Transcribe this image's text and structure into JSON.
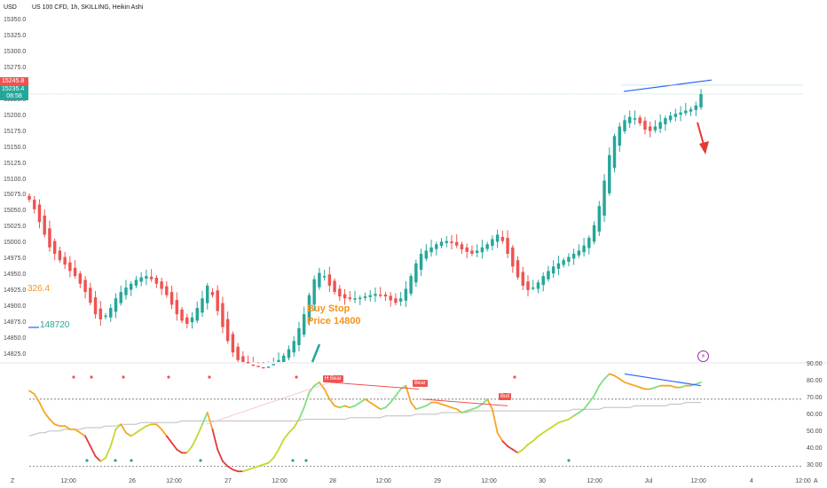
{
  "header": {
    "currency": "USD",
    "symbol_line": "US 100 CFD, 1h, SKILLING, Heikin Ashi"
  },
  "price_axis": {
    "labels": [
      "15350.0",
      "15325.0",
      "15300.0",
      "15275.0",
      "15250.0",
      "15225.0",
      "15200.0",
      "15175.0",
      "15150.0",
      "15125.0",
      "15100.0",
      "15075.0",
      "15050.0",
      "15025.0",
      "15000.0",
      "14975.0",
      "14950.0",
      "14925.0",
      "14900.0",
      "14875.0",
      "14850.0",
      "14825.0"
    ],
    "ask_tag": "15245.8",
    "bid_tag": "15235.4",
    "timer": "08:58"
  },
  "overlay": {
    "value_orange": "326.4",
    "value_green": "148720",
    "annotation_line1": "Buy Stop",
    "annotation_line2": "Price 14800"
  },
  "oscillator": {
    "axis_labels": [
      "90.00",
      "80.00",
      "70.00",
      "60.00",
      "50.00",
      "40.00",
      "30.00"
    ],
    "tags": [
      "H Bear",
      "Bear",
      "Bull"
    ]
  },
  "time_axis": {
    "labels": [
      "12:00",
      "26",
      "12:00",
      "27",
      "12:00",
      "28",
      "12:00",
      "29",
      "12:00",
      "30",
      "12:00",
      "Jul",
      "12:00",
      "4",
      "12:00"
    ],
    "corner_left": "Z",
    "corner_right": "A"
  },
  "colors": {
    "up": "#26a69a",
    "down": "#ef5350",
    "trendline": "#2962ff",
    "annotation": "#f7931a",
    "arrow": "#e53935"
  },
  "chart_data": [
    {
      "type": "candlestick",
      "title": "US 100 CFD, 1h, SKILLING, Heikin Ashi",
      "ylim": [
        14815,
        15360
      ],
      "series": [
        {
          "values": [
            15070,
            15055,
            15035,
            15015,
            14995,
            14985,
            14975,
            14968,
            14958,
            14950,
            14938,
            14925,
            14908,
            14890,
            14882,
            14888,
            14900,
            14915,
            14925,
            14932,
            14938,
            14944,
            14948,
            14950,
            14945,
            14938,
            14930,
            14920,
            14905,
            14890,
            14880,
            14875,
            14885,
            14900,
            14915,
            14935,
            14920,
            14895,
            14870,
            14848,
            14830,
            14818,
            14812,
            14810,
            14808,
            14806,
            14806,
            14808,
            14812,
            14818,
            14825,
            14835,
            14848,
            14868,
            14890,
            14920,
            14945,
            14955,
            14950,
            14935,
            14925,
            14918,
            14915,
            14914,
            14915,
            14916,
            14918,
            14920,
            14922,
            14920,
            14918,
            14912,
            14908,
            14915,
            14930,
            14950,
            14970,
            14985,
            14990,
            14995,
            15000,
            15004,
            15005,
            15002,
            14998,
            14992,
            14988,
            14985,
            14990,
            14995,
            15000,
            15008,
            15015,
            15005,
            14985,
            14965,
            14948,
            14935,
            14928,
            14932,
            14940,
            14950,
            14958,
            14965,
            14970,
            14975,
            14980,
            14985,
            14990,
            14998,
            15010,
            15030,
            15060,
            15100,
            15140,
            15170,
            15185,
            15195,
            15200,
            15198,
            15190,
            15180,
            15178,
            15185,
            15192,
            15198,
            15202,
            15205,
            15207,
            15210,
            15212,
            15218,
            15236
          ]
        }
      ]
    },
    {
      "type": "line",
      "ylim": [
        25,
        90
      ],
      "series": [
        {
          "values": [
            75,
            73,
            68,
            62,
            58,
            55,
            54,
            54,
            52,
            52,
            50,
            48,
            42,
            36,
            33,
            35,
            42,
            52,
            55,
            50,
            48,
            50,
            52,
            54,
            55,
            55,
            52,
            48,
            44,
            40,
            38,
            38,
            42,
            48,
            55,
            62,
            52,
            40,
            33,
            30,
            28,
            27,
            27,
            28,
            29,
            30,
            31,
            32,
            35,
            40,
            46,
            50,
            53,
            58,
            65,
            74,
            78,
            80,
            76,
            70,
            66,
            65,
            66,
            65,
            66,
            68,
            70,
            68,
            66,
            64,
            65,
            68,
            72,
            76,
            78,
            68,
            64,
            65,
            66,
            68,
            68,
            67,
            66,
            65,
            64,
            62,
            63,
            64,
            65,
            67,
            70,
            64,
            50,
            45,
            42,
            40,
            38,
            40,
            43,
            45,
            48,
            50,
            52,
            54,
            56,
            57,
            58,
            60,
            62,
            64,
            68,
            72,
            78,
            82,
            85,
            84,
            82,
            80,
            79,
            78,
            77,
            76,
            76,
            77,
            78,
            78,
            78,
            77,
            77,
            78,
            78,
            79,
            80
          ]
        },
        {
          "name": "",
          "values": [
            48,
            49,
            50,
            50,
            51,
            51,
            51,
            52,
            52,
            52,
            52,
            53,
            53,
            53,
            53,
            54,
            54,
            54,
            55,
            55,
            55,
            55,
            56,
            56,
            56,
            56,
            56,
            56,
            56,
            56,
            57,
            57,
            57,
            57,
            57,
            57,
            57,
            57,
            57,
            57,
            57,
            57,
            57,
            57,
            57,
            57,
            57,
            57,
            57,
            57,
            57,
            57,
            57,
            57,
            58,
            58,
            58,
            58,
            58,
            58,
            58,
            58,
            58,
            59,
            59,
            59,
            59,
            59,
            59,
            59,
            60,
            60,
            60,
            60,
            60,
            60,
            61,
            61,
            61,
            61,
            61,
            62,
            62,
            62,
            62,
            62,
            62,
            63,
            63,
            63,
            63,
            63,
            63,
            63,
            63,
            63,
            63,
            63,
            63,
            63,
            63,
            63,
            63,
            63,
            63,
            63,
            63,
            64,
            64,
            64,
            64,
            64,
            64,
            65,
            65,
            65,
            65,
            65,
            65,
            66,
            66,
            66,
            66,
            66,
            66,
            66,
            67,
            67,
            67,
            68,
            68,
            68,
            68
          ]
        }
      ]
    }
  ]
}
